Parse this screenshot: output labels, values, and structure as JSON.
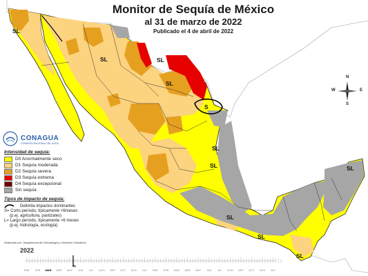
{
  "title": "Monitor de Sequía de México",
  "subtitle": "al 31 de marzo de 2022",
  "published": "Publicado el 4 de abril de 2022",
  "logo": {
    "name": "CONAGUA",
    "sub": "COMISIÓN NACIONAL DEL AGUA"
  },
  "legend": {
    "header": "Intensidad de sequía:",
    "items": [
      {
        "code": "D0",
        "label": "D0 Anormalmente seco",
        "color": "#ffff00"
      },
      {
        "code": "D1",
        "label": "D1 Sequía moderada",
        "color": "#fcd37f"
      },
      {
        "code": "D2",
        "label": "D2 Sequía severa",
        "color": "#e6a020"
      },
      {
        "code": "D3",
        "label": "D3 Sequía extrema",
        "color": "#e60000"
      },
      {
        "code": "D4",
        "label": "D4 Sequía excepcional",
        "color": "#730000"
      },
      {
        "code": "SS",
        "label": "Sin sequía",
        "color": "#a6a6a6"
      }
    ]
  },
  "impacts": {
    "header": "Tipos de impacto de sequía:",
    "delimit": "Delimita impactos dominantes",
    "short1": "S= Corto período, típicamente <6meses",
    "short2": "(p.ej. agricultura, pastizales)",
    "long1": "L= Largo período, típicamente >6 meses",
    "long2": "(p.ej. hidrología, ecología)"
  },
  "note": "Elaborado por: Subgerencia de Climatología y Servicios Climáticos",
  "timeline": {
    "year": "2022",
    "day": "31",
    "current": "MAR",
    "months": [
      "ENE",
      "FEB",
      "MAR",
      "ABR",
      "MAY",
      "JUN",
      "JUL",
      "AGO",
      "SEP",
      "OCT",
      "NOV",
      "DIC",
      "ENE",
      "FEB",
      "MAR",
      "ABR",
      "MAY",
      "JUN",
      "JUL",
      "AGO",
      "SEP",
      "OCT",
      "NOV",
      "DIC"
    ]
  },
  "compass": {
    "n": "N",
    "s": "S",
    "e": "E",
    "w": "W"
  },
  "map_labels": [
    {
      "text": "SL",
      "id": "baja-norte"
    },
    {
      "text": "SL",
      "id": "sonora"
    },
    {
      "text": "SL",
      "id": "chihuahua"
    },
    {
      "text": "SL",
      "id": "coahuila"
    },
    {
      "text": "S",
      "id": "nuevo-leon"
    },
    {
      "text": "SL",
      "id": "tamaulipas"
    },
    {
      "text": "SL",
      "id": "veracruz"
    },
    {
      "text": "SL",
      "id": "guerrero"
    },
    {
      "text": "SL",
      "id": "oaxaca"
    },
    {
      "text": "SL",
      "id": "yucatan"
    },
    {
      "text": "SL",
      "id": "chiapas"
    }
  ],
  "colors": {
    "d0": "#ffff00",
    "d1": "#fcd37f",
    "d2": "#e6a020",
    "d3": "#e60000",
    "none": "#a6a6a6",
    "border": "#222222",
    "neighbor": "#ffffff"
  }
}
